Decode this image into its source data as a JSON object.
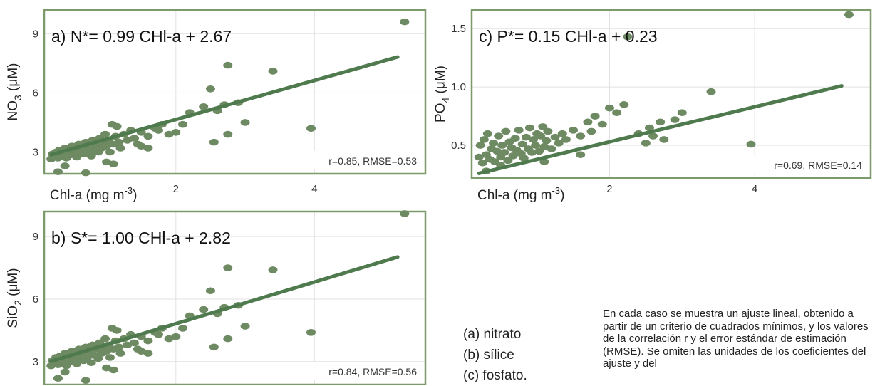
{
  "chart_data": [
    {
      "id": "a",
      "type": "scatter",
      "equation": "a) N*= 0.99 CHl-a + 2.67",
      "stats": "r=0.85, RMSE=0.53",
      "xlabel": "Chl-a (mg m-3)",
      "ylabel": "NO3 (μM)",
      "ylabel_main": "NO",
      "ylabel_sub": "3",
      "ylabel_unit": " (μM)",
      "xticks": [
        "2",
        "4"
      ],
      "yticks": [
        "3",
        "6",
        "9"
      ],
      "xlim": [
        0.1,
        5.6
      ],
      "ylim": [
        1.9,
        10.2
      ],
      "fit": {
        "slope": 0.99,
        "intercept": 2.67,
        "x_range": [
          0.2,
          5.2
        ]
      },
      "points": [
        [
          0.2,
          2.65
        ],
        [
          0.22,
          2.9
        ],
        [
          0.25,
          2.8
        ],
        [
          0.27,
          3.0
        ],
        [
          0.3,
          2.7
        ],
        [
          0.32,
          3.1
        ],
        [
          0.35,
          2.8
        ],
        [
          0.37,
          2.95
        ],
        [
          0.4,
          3.2
        ],
        [
          0.42,
          2.7
        ],
        [
          0.45,
          3.0
        ],
        [
          0.47,
          2.85
        ],
        [
          0.5,
          3.3
        ],
        [
          0.52,
          2.9
        ],
        [
          0.55,
          3.1
        ],
        [
          0.57,
          2.75
        ],
        [
          0.6,
          3.4
        ],
        [
          0.62,
          3.0
        ],
        [
          0.65,
          3.2
        ],
        [
          0.67,
          2.9
        ],
        [
          0.7,
          3.5
        ],
        [
          0.72,
          3.05
        ],
        [
          0.75,
          3.3
        ],
        [
          0.78,
          2.8
        ],
        [
          0.8,
          3.6
        ],
        [
          0.82,
          3.1
        ],
        [
          0.85,
          3.4
        ],
        [
          0.88,
          3.0
        ],
        [
          0.9,
          3.7
        ],
        [
          0.93,
          3.2
        ],
        [
          0.95,
          3.5
        ],
        [
          0.98,
          3.9
        ],
        [
          1.0,
          3.3
        ],
        [
          1.03,
          3.6
        ],
        [
          1.05,
          3.0
        ],
        [
          1.08,
          4.4
        ],
        [
          1.1,
          3.4
        ],
        [
          1.13,
          3.8
        ],
        [
          1.15,
          4.3
        ],
        [
          1.18,
          3.5
        ],
        [
          1.2,
          3.2
        ],
        [
          1.25,
          3.9
        ],
        [
          1.3,
          3.6
        ],
        [
          1.35,
          4.1
        ],
        [
          1.4,
          3.7
        ],
        [
          1.45,
          3.4
        ],
        [
          1.5,
          4.0
        ],
        [
          1.6,
          3.8
        ],
        [
          1.7,
          4.2
        ],
        [
          1.75,
          4.1
        ],
        [
          1.8,
          4.4
        ],
        [
          1.9,
          3.9
        ],
        [
          2.0,
          4.0
        ],
        [
          2.1,
          4.4
        ],
        [
          2.2,
          5.0
        ],
        [
          2.4,
          5.3
        ],
        [
          2.5,
          6.2
        ],
        [
          2.6,
          5.1
        ],
        [
          2.7,
          5.4
        ],
        [
          2.9,
          5.5
        ],
        [
          3.0,
          4.5
        ],
        [
          3.4,
          7.1
        ],
        [
          2.75,
          7.4
        ],
        [
          2.75,
          3.9
        ],
        [
          2.55,
          3.5
        ],
        [
          1.1,
          2.4
        ],
        [
          1.0,
          2.5
        ],
        [
          0.3,
          2.0
        ],
        [
          0.7,
          1.95
        ],
        [
          0.4,
          2.3
        ],
        [
          1.5,
          3.3
        ],
        [
          1.6,
          3.2
        ],
        [
          3.95,
          4.2
        ],
        [
          5.3,
          9.6
        ]
      ]
    },
    {
      "id": "b",
      "type": "scatter",
      "equation": "b) S*= 1.00 CHl-a + 2.82",
      "stats": "r=0.84, RMSE=0.56",
      "xlabel": "",
      "ylabel": "SiO2 (μM)",
      "ylabel_main": "SiO",
      "ylabel_sub": "2",
      "ylabel_unit": " (μM)",
      "xticks": [],
      "yticks": [
        "3",
        "6",
        "9"
      ],
      "xlim": [
        0.1,
        5.6
      ],
      "ylim": [
        1.9,
        10.2
      ],
      "fit": {
        "slope": 1.0,
        "intercept": 2.82,
        "x_range": [
          0.2,
          5.2
        ]
      },
      "points": [
        [
          0.2,
          2.8
        ],
        [
          0.22,
          3.05
        ],
        [
          0.25,
          2.9
        ],
        [
          0.27,
          3.2
        ],
        [
          0.3,
          2.85
        ],
        [
          0.32,
          3.25
        ],
        [
          0.35,
          2.95
        ],
        [
          0.37,
          3.1
        ],
        [
          0.4,
          3.4
        ],
        [
          0.42,
          2.8
        ],
        [
          0.45,
          3.15
        ],
        [
          0.47,
          3.0
        ],
        [
          0.5,
          3.5
        ],
        [
          0.52,
          3.05
        ],
        [
          0.55,
          3.3
        ],
        [
          0.57,
          2.9
        ],
        [
          0.6,
          3.6
        ],
        [
          0.62,
          3.15
        ],
        [
          0.65,
          3.4
        ],
        [
          0.67,
          3.05
        ],
        [
          0.7,
          3.7
        ],
        [
          0.72,
          3.2
        ],
        [
          0.75,
          3.5
        ],
        [
          0.78,
          2.95
        ],
        [
          0.8,
          3.8
        ],
        [
          0.82,
          3.3
        ],
        [
          0.85,
          3.6
        ],
        [
          0.88,
          3.15
        ],
        [
          0.9,
          3.9
        ],
        [
          0.93,
          3.4
        ],
        [
          0.95,
          3.7
        ],
        [
          0.98,
          4.1
        ],
        [
          1.0,
          3.5
        ],
        [
          1.03,
          3.8
        ],
        [
          1.05,
          3.2
        ],
        [
          1.08,
          4.6
        ],
        [
          1.1,
          3.6
        ],
        [
          1.13,
          4.0
        ],
        [
          1.15,
          4.5
        ],
        [
          1.18,
          3.7
        ],
        [
          1.2,
          3.4
        ],
        [
          1.25,
          4.1
        ],
        [
          1.3,
          3.8
        ],
        [
          1.35,
          4.3
        ],
        [
          1.4,
          3.9
        ],
        [
          1.45,
          3.6
        ],
        [
          1.5,
          4.2
        ],
        [
          1.6,
          4.0
        ],
        [
          1.7,
          4.4
        ],
        [
          1.75,
          4.3
        ],
        [
          1.8,
          4.6
        ],
        [
          1.9,
          4.1
        ],
        [
          2.0,
          4.2
        ],
        [
          2.1,
          4.6
        ],
        [
          2.2,
          5.2
        ],
        [
          2.4,
          5.5
        ],
        [
          2.5,
          6.4
        ],
        [
          2.6,
          5.3
        ],
        [
          2.7,
          5.6
        ],
        [
          2.9,
          5.7
        ],
        [
          3.0,
          4.7
        ],
        [
          3.4,
          7.4
        ],
        [
          2.75,
          7.5
        ],
        [
          2.75,
          4.1
        ],
        [
          2.55,
          3.7
        ],
        [
          1.1,
          2.6
        ],
        [
          1.0,
          2.7
        ],
        [
          0.3,
          2.2
        ],
        [
          0.7,
          2.1
        ],
        [
          0.4,
          2.5
        ],
        [
          1.5,
          3.5
        ],
        [
          1.6,
          3.4
        ],
        [
          3.95,
          4.4
        ],
        [
          5.3,
          10.1
        ]
      ]
    },
    {
      "id": "c",
      "type": "scatter",
      "equation": "c) P*= 0.15 CHl-a + 0.23",
      "stats": "r=0.69, RMSE=0.14",
      "xlabel": "Chl-a (mg m-3)",
      "ylabel": "PO4 (μM)",
      "ylabel_main": "PO",
      "ylabel_sub": "4",
      "ylabel_unit": " (μM)",
      "xticks": [
        "2",
        "4"
      ],
      "yticks": [
        "0.5",
        "1.0",
        "1.5"
      ],
      "xlim": [
        0.1,
        5.6
      ],
      "ylim": [
        0.22,
        1.66
      ],
      "fit": {
        "slope": 0.15,
        "intercept": 0.23,
        "x_range": [
          0.2,
          5.2
        ]
      },
      "points": [
        [
          0.2,
          0.4
        ],
        [
          0.22,
          0.5
        ],
        [
          0.25,
          0.35
        ],
        [
          0.27,
          0.55
        ],
        [
          0.3,
          0.42
        ],
        [
          0.32,
          0.6
        ],
        [
          0.35,
          0.38
        ],
        [
          0.37,
          0.47
        ],
        [
          0.4,
          0.52
        ],
        [
          0.42,
          0.36
        ],
        [
          0.45,
          0.45
        ],
        [
          0.47,
          0.58
        ],
        [
          0.5,
          0.4
        ],
        [
          0.52,
          0.5
        ],
        [
          0.55,
          0.44
        ],
        [
          0.57,
          0.62
        ],
        [
          0.6,
          0.37
        ],
        [
          0.62,
          0.53
        ],
        [
          0.65,
          0.48
        ],
        [
          0.67,
          0.41
        ],
        [
          0.7,
          0.56
        ],
        [
          0.72,
          0.46
        ],
        [
          0.75,
          0.63
        ],
        [
          0.78,
          0.43
        ],
        [
          0.8,
          0.51
        ],
        [
          0.82,
          0.39
        ],
        [
          0.85,
          0.57
        ],
        [
          0.88,
          0.47
        ],
        [
          0.9,
          0.65
        ],
        [
          0.93,
          0.44
        ],
        [
          0.95,
          0.55
        ],
        [
          0.98,
          0.5
        ],
        [
          1.0,
          0.6
        ],
        [
          1.03,
          0.45
        ],
        [
          1.05,
          0.58
        ],
        [
          1.08,
          0.66
        ],
        [
          1.1,
          0.49
        ],
        [
          1.13,
          0.54
        ],
        [
          1.15,
          0.62
        ],
        [
          1.2,
          0.47
        ],
        [
          1.25,
          0.57
        ],
        [
          1.3,
          0.52
        ],
        [
          1.35,
          0.6
        ],
        [
          1.4,
          0.55
        ],
        [
          1.5,
          0.63
        ],
        [
          1.6,
          0.58
        ],
        [
          1.7,
          0.7
        ],
        [
          1.75,
          0.62
        ],
        [
          1.8,
          0.75
        ],
        [
          1.9,
          0.68
        ],
        [
          2.0,
          0.82
        ],
        [
          2.1,
          0.78
        ],
        [
          2.2,
          0.85
        ],
        [
          2.4,
          0.6
        ],
        [
          2.5,
          0.52
        ],
        [
          2.6,
          0.58
        ],
        [
          2.7,
          0.7
        ],
        [
          2.9,
          0.72
        ],
        [
          3.0,
          0.78
        ],
        [
          3.4,
          0.96
        ],
        [
          2.75,
          0.55
        ],
        [
          2.55,
          0.65
        ],
        [
          0.3,
          0.28
        ],
        [
          0.5,
          0.33
        ],
        [
          1.1,
          0.36
        ],
        [
          1.6,
          0.42
        ],
        [
          3.95,
          0.51
        ],
        [
          2.25,
          1.43
        ],
        [
          5.3,
          1.62
        ]
      ]
    }
  ],
  "legend": {
    "items": [
      "(a) nitrato",
      "(b) sílice",
      "(c) fosfato."
    ]
  },
  "caption": {
    "text": "En cada caso se muestra un ajuste lineal, obtenido a partir de un criterio de cuadrados mínimos, y los valores de la correlación r y el error estándar de estimación (RMSE). Se omiten las unidades de los coeficientes del ajuste y del"
  },
  "colors": {
    "frame": "#7d9a6b",
    "point": "#6e8a62",
    "fit_line": "#4e7a4e",
    "grid": "#e2e2e2"
  }
}
